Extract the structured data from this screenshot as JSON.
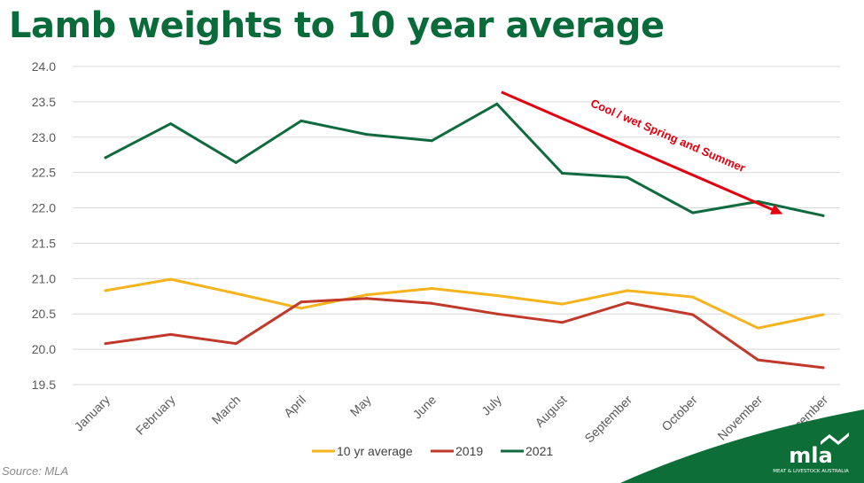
{
  "slide": {
    "title": "Lamb weights to 10 year average",
    "source": "Source: MLA"
  },
  "logo": {
    "wordmark": "mla",
    "tagline": "MEAT & LIVESTOCK AUSTRALIA"
  },
  "colors": {
    "title": "#0a6b3a",
    "avg": "#f5b31c",
    "s2019": "#c0392b",
    "s2021": "#0f6b3f",
    "annotation": "#e3000f",
    "grid": "#d9d9d9",
    "corner": "#0d6e38"
  },
  "chart_data": {
    "type": "line",
    "categories": [
      "January",
      "February",
      "March",
      "April",
      "May",
      "June",
      "July",
      "August",
      "September",
      "October",
      "November",
      "December"
    ],
    "series": [
      {
        "name": "10 yr average",
        "color_key": "avg",
        "values": [
          20.83,
          20.99,
          20.79,
          20.58,
          20.77,
          20.86,
          20.76,
          20.64,
          20.83,
          20.74,
          20.3,
          20.49
        ]
      },
      {
        "name": "2019",
        "color_key": "s2019",
        "values": [
          20.08,
          20.21,
          20.08,
          20.67,
          20.72,
          20.65,
          20.5,
          20.38,
          20.66,
          20.49,
          19.85,
          19.74
        ]
      },
      {
        "name": "2021",
        "color_key": "s2021",
        "values": [
          22.71,
          23.19,
          22.64,
          23.23,
          23.04,
          22.95,
          23.47,
          22.49,
          22.43,
          21.93,
          22.09,
          21.89
        ]
      }
    ],
    "yticks": [
      "24.0",
      "23.5",
      "23.0",
      "22.5",
      "22.0",
      "21.5",
      "21.0",
      "20.5",
      "20.0",
      "19.5"
    ],
    "ylim": [
      19.5,
      24.0
    ],
    "grid": true,
    "legend_position": "bottom",
    "annotation": {
      "text": "Cool / wet Spring and Summer",
      "arrow_from": {
        "x": "July",
        "y": 23.6
      },
      "arrow_to": {
        "x": "November",
        "y": 21.95
      }
    }
  }
}
